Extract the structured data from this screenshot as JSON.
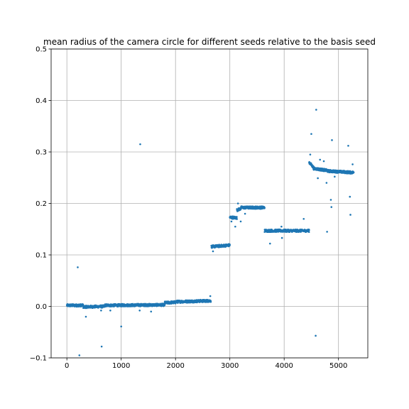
{
  "chart_data": {
    "type": "scatter",
    "title": "mean radius of the camera circle for different seeds relative to the basis seed",
    "xlabel": "",
    "ylabel": "",
    "xlim": [
      -290,
      5540
    ],
    "ylim": [
      -0.1,
      0.5
    ],
    "xticks": [
      0,
      1000,
      2000,
      3000,
      4000,
      5000
    ],
    "xtick_labels": [
      "0",
      "1000",
      "2000",
      "3000",
      "4000",
      "5000"
    ],
    "yticks": [
      -0.1,
      0.0,
      0.1,
      0.2,
      0.3,
      0.4,
      0.5
    ],
    "ytick_labels": [
      "−0.1",
      "0.0",
      "0.1",
      "0.2",
      "0.3",
      "0.4",
      "0.5"
    ],
    "grid": true,
    "legend": "none",
    "marker_color": "#1f77b4",
    "segments": [
      {
        "x_start": 0,
        "x_end": 300,
        "y_start": 0.002,
        "y_end": 0.002
      },
      {
        "x_start": 300,
        "x_end": 700,
        "y_start": -0.001,
        "y_end": 0.0
      },
      {
        "x_start": 700,
        "x_end": 1800,
        "y_start": 0.002,
        "y_end": 0.003
      },
      {
        "x_start": 1800,
        "x_end": 2000,
        "y_start": 0.007,
        "y_end": 0.008
      },
      {
        "x_start": 2000,
        "x_end": 2650,
        "y_start": 0.009,
        "y_end": 0.011
      },
      {
        "x_start": 2660,
        "x_end": 3000,
        "y_start": 0.116,
        "y_end": 0.119
      },
      {
        "x_start": 3000,
        "x_end": 3130,
        "y_start": 0.173,
        "y_end": 0.172
      },
      {
        "x_start": 3130,
        "x_end": 3200,
        "y_start": 0.187,
        "y_end": 0.19
      },
      {
        "x_start": 3200,
        "x_end": 3640,
        "y_start": 0.192,
        "y_end": 0.192
      },
      {
        "x_start": 3640,
        "x_end": 4460,
        "y_start": 0.147,
        "y_end": 0.147
      },
      {
        "x_start": 4460,
        "x_end": 4540,
        "y_start": 0.28,
        "y_end": 0.27
      },
      {
        "x_start": 4540,
        "x_end": 4800,
        "y_start": 0.268,
        "y_end": 0.264
      },
      {
        "x_start": 4800,
        "x_end": 5280,
        "y_start": 0.263,
        "y_end": 0.26
      }
    ],
    "outliers": [
      {
        "x": 200,
        "y": 0.076
      },
      {
        "x": 230,
        "y": -0.095
      },
      {
        "x": 350,
        "y": -0.02
      },
      {
        "x": 640,
        "y": -0.078
      },
      {
        "x": 630,
        "y": -0.008
      },
      {
        "x": 800,
        "y": -0.008
      },
      {
        "x": 1000,
        "y": -0.039
      },
      {
        "x": 1350,
        "y": 0.315
      },
      {
        "x": 1340,
        "y": -0.008
      },
      {
        "x": 1550,
        "y": -0.01
      },
      {
        "x": 2640,
        "y": 0.02
      },
      {
        "x": 2690,
        "y": 0.107
      },
      {
        "x": 3030,
        "y": 0.165
      },
      {
        "x": 3100,
        "y": 0.155
      },
      {
        "x": 3150,
        "y": 0.2
      },
      {
        "x": 3200,
        "y": 0.165
      },
      {
        "x": 3280,
        "y": 0.18
      },
      {
        "x": 3740,
        "y": 0.122
      },
      {
        "x": 3950,
        "y": 0.155
      },
      {
        "x": 3960,
        "y": 0.133
      },
      {
        "x": 4360,
        "y": 0.17
      },
      {
        "x": 4480,
        "y": 0.295
      },
      {
        "x": 4500,
        "y": 0.335
      },
      {
        "x": 4590,
        "y": 0.382
      },
      {
        "x": 4580,
        "y": -0.057
      },
      {
        "x": 4620,
        "y": 0.249
      },
      {
        "x": 4660,
        "y": 0.285
      },
      {
        "x": 4730,
        "y": 0.282
      },
      {
        "x": 4780,
        "y": 0.24
      },
      {
        "x": 4790,
        "y": 0.145
      },
      {
        "x": 4860,
        "y": 0.207
      },
      {
        "x": 4870,
        "y": 0.193
      },
      {
        "x": 4880,
        "y": 0.323
      },
      {
        "x": 4930,
        "y": 0.252
      },
      {
        "x": 5180,
        "y": 0.312
      },
      {
        "x": 5210,
        "y": 0.213
      },
      {
        "x": 5220,
        "y": 0.178
      },
      {
        "x": 5260,
        "y": 0.276
      }
    ]
  }
}
